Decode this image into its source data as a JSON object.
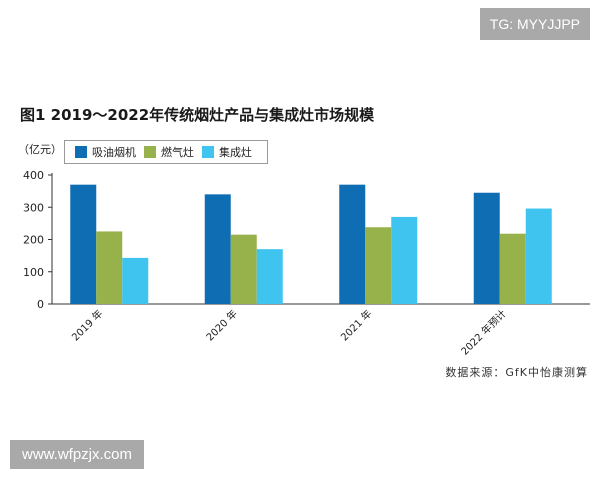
{
  "badge": {
    "text": "TG: MYYJJPP"
  },
  "watermark": {
    "text": "www.wfpzjx.com"
  },
  "source": {
    "text": "数据来源：GfK中怡康测算"
  },
  "chart_data": {
    "type": "bar",
    "title": "图1  2019～2022年传统烟灶产品与集成灶市场规模",
    "unit_label": "（亿元）",
    "categories": [
      "2019 年",
      "2020 年",
      "2021 年",
      "2022 年预计"
    ],
    "series": [
      {
        "name": "吸油烟机",
        "color": "#0f6db4",
        "values": [
          370,
          340,
          370,
          345
        ]
      },
      {
        "name": "燃气灶",
        "color": "#97b24a",
        "values": [
          225,
          215,
          238,
          218
        ]
      },
      {
        "name": "集成灶",
        "color": "#3fc4ef",
        "values": [
          143,
          170,
          270,
          296
        ]
      }
    ],
    "ylim": [
      0,
      400
    ],
    "yticks": [
      0,
      100,
      200,
      300,
      400
    ],
    "legend_position": "top-left",
    "grid": false
  }
}
